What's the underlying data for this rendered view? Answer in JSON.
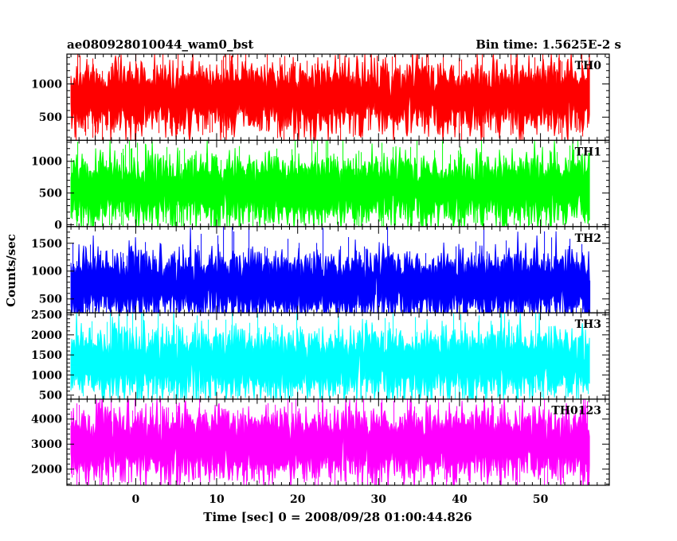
{
  "header": {
    "left_title": "ae080928010044_wam0_bst",
    "right_title": "Bin time: 1.5625E-2 s"
  },
  "chart_data": {
    "type": "line",
    "xlabel": "Time [sec] 0 = 2008/09/28 01:00:44.826",
    "ylabel": "Counts/sec",
    "xlim": [
      -8.5,
      58.5
    ],
    "x_ticks": [
      0,
      10,
      20,
      30,
      40,
      50
    ],
    "x_start": -8,
    "x_end": 56,
    "bin_time": 0.015625,
    "panels": [
      {
        "name": "TH0",
        "color": "#ff0000",
        "ylim": [
          150,
          1450
        ],
        "yticks": [
          500,
          1000
        ],
        "mean": 800,
        "low": 200,
        "high": 1400
      },
      {
        "name": "TH1",
        "color": "#00ff00",
        "ylim": [
          -30,
          1330
        ],
        "yticks": [
          0,
          500,
          1000
        ],
        "mean": 550,
        "low": 0,
        "high": 1250
      },
      {
        "name": "TH2",
        "color": "#0000ff",
        "ylim": [
          250,
          1800
        ],
        "yticks": [
          500,
          1000,
          1500
        ],
        "mean": 750,
        "low": 300,
        "high": 1700
      },
      {
        "name": "TH3",
        "color": "#00ffff",
        "ylim": [
          400,
          2550
        ],
        "yticks": [
          500,
          1000,
          1500,
          2000,
          2500
        ],
        "mean": 1300,
        "low": 500,
        "high": 2500
      },
      {
        "name": "TH0123",
        "color": "#ff00ff",
        "ylim": [
          1350,
          4800
        ],
        "yticks": [
          2000,
          3000,
          4000
        ],
        "mean": 3000,
        "low": 1400,
        "high": 4700
      }
    ]
  }
}
